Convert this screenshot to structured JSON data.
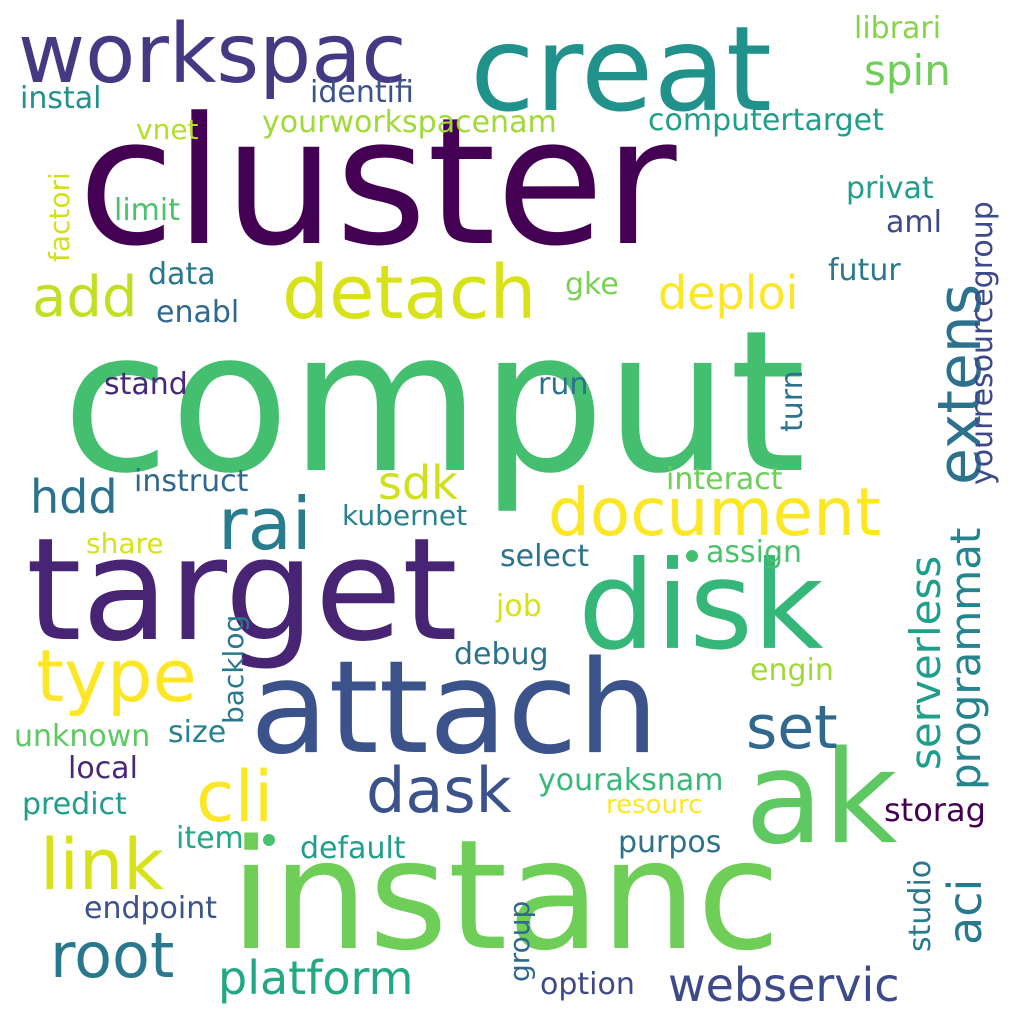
{
  "words": [
    {
      "text": "comput",
      "color": "#44bf70"
    },
    {
      "text": "cluster",
      "color": "#440154"
    },
    {
      "text": "instanc",
      "color": "#6ece58"
    },
    {
      "text": "target",
      "color": "#482475"
    },
    {
      "text": "attach",
      "color": "#3b528b"
    },
    {
      "text": "creat",
      "color": "#21918c"
    },
    {
      "text": "disk",
      "color": "#35b779"
    },
    {
      "text": "workspac",
      "color": "#443983"
    },
    {
      "text": "ak",
      "color": "#5ec962"
    },
    {
      "text": "detach",
      "color": "#d8e219"
    },
    {
      "text": "type",
      "color": "#fde725"
    },
    {
      "text": "document",
      "color": "#fde725"
    },
    {
      "text": "extens",
      "color": "#2c728e"
    },
    {
      "text": "link",
      "color": "#d8e219"
    },
    {
      "text": "rai",
      "color": "#287c8e"
    },
    {
      "text": "cli",
      "color": "#fde725"
    },
    {
      "text": "root",
      "color": "#2a788e"
    },
    {
      "text": "add",
      "color": "#c2df23"
    },
    {
      "text": "dask",
      "color": "#3b528b"
    },
    {
      "text": "set",
      "color": "#31688e"
    },
    {
      "text": "platform",
      "color": "#22a884"
    },
    {
      "text": "webservic",
      "color": "#3e4989"
    },
    {
      "text": "serverless",
      "color": "#1f9e89"
    },
    {
      "text": "programmat",
      "color": "#25858e"
    },
    {
      "text": "hdd",
      "color": "#2c728e"
    },
    {
      "text": "deploi",
      "color": "#fde725"
    },
    {
      "text": "aci",
      "color": "#2a788e"
    },
    {
      "text": "sdk",
      "color": "#d0e11c"
    },
    {
      "text": "spin",
      "color": "#6ece58"
    },
    {
      "text": "yourresourcegroup",
      "color": "#3e4989"
    },
    {
      "text": "computertarget",
      "color": "#1f9e89"
    },
    {
      "text": "librari",
      "color": "#86d549"
    },
    {
      "text": "identifi",
      "color": "#3b528b"
    },
    {
      "text": "yourworkspacenam",
      "color": "#a0da39"
    },
    {
      "text": "instal",
      "color": "#21918c"
    },
    {
      "text": "vnet",
      "color": "#b5de2b"
    },
    {
      "text": "factori",
      "color": "#d0e11c"
    },
    {
      "text": "limit",
      "color": "#4ac16d"
    },
    {
      "text": "privat",
      "color": "#1f9e89"
    },
    {
      "text": "aml",
      "color": "#3e4989"
    },
    {
      "text": "data",
      "color": "#2a788e"
    },
    {
      "text": "futur",
      "color": "#2a788e"
    },
    {
      "text": "gke",
      "color": "#7ad151"
    },
    {
      "text": "enabl",
      "color": "#31688e"
    },
    {
      "text": "stand",
      "color": "#482878"
    },
    {
      "text": "run",
      "color": "#2c728e"
    },
    {
      "text": "turn",
      "color": "#2c728e"
    },
    {
      "text": "instruct",
      "color": "#31688e"
    },
    {
      "text": "interact",
      "color": "#6ece58"
    },
    {
      "text": "kubernet",
      "color": "#26828e"
    },
    {
      "text": "share",
      "color": "#d8e219"
    },
    {
      "text": "select",
      "color": "#2c728e"
    },
    {
      "text": "assign",
      "color": "#4ac16d"
    },
    {
      "text": "backlog",
      "color": "#2a788e"
    },
    {
      "text": "job",
      "color": "#d8e219"
    },
    {
      "text": "debug",
      "color": "#2c728e"
    },
    {
      "text": "engin",
      "color": "#a0da39"
    },
    {
      "text": "size",
      "color": "#26828e"
    },
    {
      "text": "unknown",
      "color": "#5ec962"
    },
    {
      "text": "local",
      "color": "#482878"
    },
    {
      "text": "youraksnam",
      "color": "#37b878"
    },
    {
      "text": "resourc",
      "color": "#fde725"
    },
    {
      "text": "predict",
      "color": "#1f9e89"
    },
    {
      "text": "storag",
      "color": "#440154"
    },
    {
      "text": "item",
      "color": "#22a884"
    },
    {
      "text": "default",
      "color": "#1f9e89"
    },
    {
      "text": "purpos",
      "color": "#2c728e"
    },
    {
      "text": "studio",
      "color": "#2a788e"
    },
    {
      "text": "endpoint",
      "color": "#3b528b"
    },
    {
      "text": "group",
      "color": "#31688e"
    },
    {
      "text": "option",
      "color": "#3e4989"
    }
  ],
  "dots": [
    {
      "color": "#44bf70"
    },
    {
      "color": "#4ac16d"
    }
  ]
}
